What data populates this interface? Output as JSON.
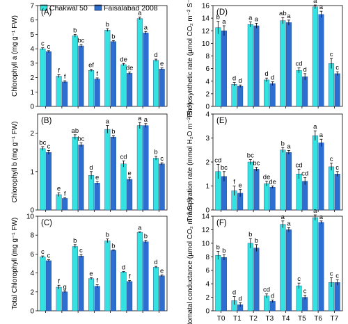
{
  "colors": {
    "chakwal": "#34e3df",
    "faisalabad": "#2d6fd1",
    "axis": "#000000"
  },
  "legend": [
    "Chakwal 50",
    "Faisalabad 2008"
  ],
  "categories": [
    "T0",
    "T1",
    "T2",
    "T3",
    "T4",
    "T5",
    "T6",
    "T7"
  ],
  "chart_data": [
    {
      "type": "bar",
      "panel": "(A)",
      "ylabel": "Chlorophyll a (mg g⁻¹ FW)",
      "ylim": [
        0,
        7
      ],
      "yticks": [
        0,
        1,
        2,
        3,
        4,
        5,
        6,
        7
      ],
      "categories": [
        "T0",
        "T1",
        "T2",
        "T3",
        "T4",
        "T5",
        "T6",
        "T7"
      ],
      "series": [
        {
          "name": "Chakwal 50",
          "values": [
            4.0,
            2.1,
            4.9,
            2.5,
            5.3,
            2.9,
            6.1,
            3.2
          ],
          "errors": [
            0.07,
            0.1,
            0.1,
            0.08,
            0.1,
            0.08,
            0.1,
            0.08
          ],
          "letters": [
            "c",
            "f",
            "b",
            "ef",
            "b",
            "de",
            "a",
            "d"
          ]
        },
        {
          "name": "Faisalabad 2008",
          "values": [
            3.8,
            1.7,
            4.2,
            1.9,
            4.5,
            2.3,
            5.1,
            2.6
          ],
          "errors": [
            0.07,
            0.08,
            0.1,
            0.08,
            0.07,
            0.08,
            0.1,
            0.07
          ],
          "letters": [
            "c",
            "f",
            "bc",
            "f",
            "b",
            "de",
            "a",
            "e"
          ]
        }
      ]
    },
    {
      "type": "bar",
      "panel": "(B)",
      "ylabel": "Chlorophyll b (mg g⁻¹ FW)",
      "ylim": [
        0,
        2.5
      ],
      "yticks": [
        0,
        1,
        2
      ],
      "categories": [
        "T0",
        "T1",
        "T2",
        "T3",
        "T4",
        "T5",
        "T6",
        "T7"
      ],
      "series": [
        {
          "name": "Chakwal 50",
          "values": [
            1.6,
            0.4,
            1.9,
            0.9,
            2.1,
            1.2,
            2.2,
            1.35
          ],
          "errors": [
            0.05,
            0.05,
            0.06,
            0.1,
            0.1,
            0.08,
            0.08,
            0.05
          ],
          "letters": [
            "bc",
            "e",
            "ab",
            "d",
            "a",
            "cd",
            "a",
            "b"
          ]
        },
        {
          "name": "Faisalabad 2008",
          "values": [
            1.5,
            0.3,
            1.7,
            0.7,
            1.9,
            0.8,
            2.2,
            1.2
          ],
          "errors": [
            0.05,
            0.02,
            0.05,
            0.04,
            0.04,
            0.05,
            0.05,
            0.03
          ],
          "letters": [
            "c",
            "f",
            "bc",
            "e",
            "b",
            "e",
            "a",
            "c"
          ]
        }
      ]
    },
    {
      "type": "bar",
      "panel": "(C)",
      "ylabel": "Total Chlorophyll (mg g⁻¹ FW)",
      "ylim": [
        0,
        10
      ],
      "yticks": [
        0,
        2,
        4,
        6,
        8,
        10
      ],
      "categories": [
        "T0",
        "T1",
        "T2",
        "T3",
        "T4",
        "T5",
        "T6",
        "T7"
      ],
      "series": [
        {
          "name": "Chakwal 50",
          "values": [
            5.7,
            2.5,
            6.8,
            3.4,
            7.4,
            4.1,
            8.3,
            4.6
          ],
          "errors": [
            0.1,
            0.2,
            0.2,
            0.1,
            0.2,
            0.05,
            0.05,
            0.1
          ],
          "letters": [
            "c",
            "f",
            "b",
            "e",
            "b",
            "d",
            "a",
            "d"
          ]
        },
        {
          "name": "Faisalabad 2008",
          "values": [
            5.3,
            2.0,
            5.8,
            2.6,
            6.4,
            3.1,
            7.3,
            3.7
          ],
          "errors": [
            0.1,
            0.1,
            0.15,
            0.15,
            0.05,
            0.1,
            0.15,
            0.1
          ],
          "letters": [
            "c",
            "g",
            "c",
            "f",
            "b",
            "f",
            "b",
            "e"
          ]
        }
      ]
    },
    {
      "type": "bar",
      "panel": "(D)",
      "ylabel": "Photosynthetic rate (µmol CO₂ m⁻² S⁻¹)",
      "ylim": [
        0,
        16
      ],
      "yticks": [
        0,
        2,
        4,
        6,
        8,
        10,
        12,
        14,
        16
      ],
      "categories": [
        "T0",
        "T1",
        "T2",
        "T3",
        "T4",
        "T5",
        "T6",
        "T7"
      ],
      "series": [
        {
          "name": "Chakwal 50",
          "values": [
            12.5,
            3.5,
            13.0,
            4.2,
            13.6,
            5.7,
            15.8,
            6.8
          ],
          "errors": [
            1.0,
            0.3,
            0.4,
            0.3,
            0.5,
            0.4,
            0.3,
            0.8
          ],
          "letters": [
            "b",
            "d",
            "a",
            "d",
            "ab",
            "cd",
            "a",
            "c"
          ]
        },
        {
          "name": "Faisalabad 2008",
          "values": [
            12.0,
            3.2,
            12.8,
            3.6,
            13.3,
            4.7,
            14.6,
            5.2
          ],
          "errors": [
            0.8,
            0.2,
            0.4,
            0.3,
            0.4,
            0.5,
            0.5,
            0.3
          ],
          "letters": [
            "a",
            "d",
            "a",
            "d",
            "a",
            "d",
            "a",
            "c"
          ]
        }
      ]
    },
    {
      "type": "bar",
      "panel": "(E)",
      "ylabel": "Transpiration rate (mmol H₂O m⁻² S⁻¹)",
      "ylim": [
        0,
        4
      ],
      "yticks": [
        0,
        1,
        2,
        3,
        4
      ],
      "categories": [
        "T0",
        "T1",
        "T2",
        "T3",
        "T4",
        "T5",
        "T6",
        "T7"
      ],
      "series": [
        {
          "name": "Chakwal 50",
          "values": [
            1.6,
            0.8,
            2.0,
            1.1,
            2.5,
            1.5,
            3.1,
            1.8
          ],
          "errors": [
            0.3,
            0.2,
            0.1,
            0.1,
            0.1,
            0.2,
            0.2,
            0.15
          ],
          "letters": [
            "cd",
            "f",
            "bc",
            "de",
            "b",
            "cd",
            "a",
            "c"
          ]
        },
        {
          "name": "Faisalabad 2008",
          "values": [
            1.4,
            0.7,
            1.7,
            0.95,
            2.4,
            1.2,
            2.8,
            1.5
          ],
          "errors": [
            0.2,
            0.15,
            0.08,
            0.05,
            0.08,
            0.15,
            0.15,
            0.1
          ],
          "letters": [
            "bc",
            "e",
            "bc",
            "de",
            "a",
            "cd",
            "a",
            "c"
          ]
        }
      ]
    },
    {
      "type": "bar",
      "panel": "(F)",
      "ylabel": "Stomatal conductance (µmol CO₂ m⁻² S⁻¹)",
      "ylim": [
        0,
        14
      ],
      "yticks": [
        0,
        2,
        4,
        6,
        8,
        10,
        12,
        14
      ],
      "xlabel_ticks": true,
      "categories": [
        "T0",
        "T1",
        "T2",
        "T3",
        "T4",
        "T5",
        "T6",
        "T7"
      ],
      "series": [
        {
          "name": "Chakwal 50",
          "values": [
            8.2,
            1.5,
            10.0,
            2.2,
            12.8,
            3.7,
            13.8,
            4.2
          ],
          "errors": [
            0.6,
            0.6,
            0.7,
            0.3,
            0.5,
            0.4,
            0.4,
            0.7
          ],
          "letters": [
            "b",
            "d",
            "b",
            "cd",
            "a",
            "c",
            "a",
            "c"
          ]
        },
        {
          "name": "Faisalabad 2008",
          "values": [
            7.9,
            0.9,
            9.3,
            1.4,
            12.0,
            2.0,
            13.1,
            4.2
          ],
          "errors": [
            0.4,
            0.3,
            0.5,
            0.2,
            0.3,
            0.3,
            0.2,
            0.4
          ],
          "letters": [
            "b",
            "d",
            "b",
            "d",
            "a",
            "c",
            "a",
            "c"
          ]
        }
      ]
    }
  ]
}
